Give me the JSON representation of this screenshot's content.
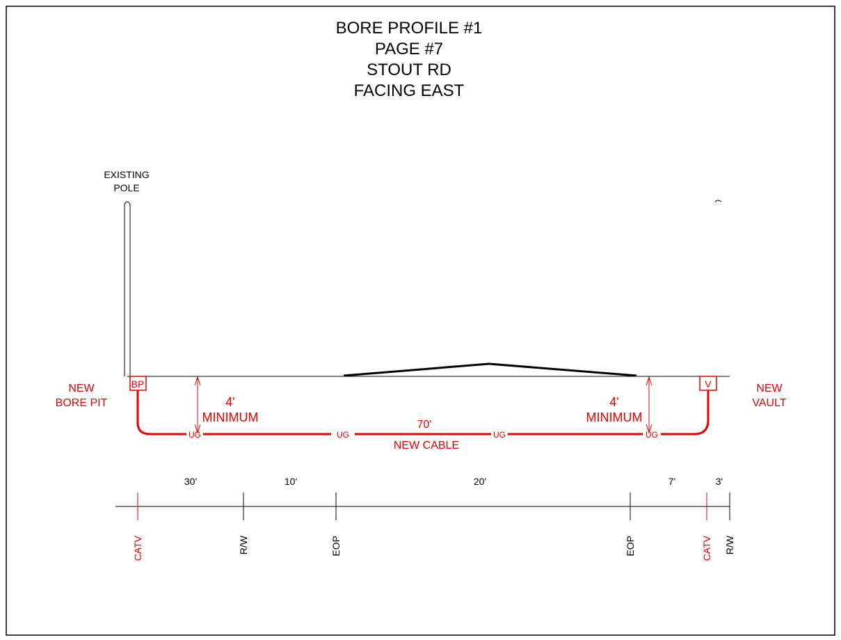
{
  "title": {
    "line1": "BORE PROFILE #1",
    "line2": "PAGE #7",
    "line3": "STOUT RD",
    "line4": "FACING EAST"
  },
  "pole": {
    "label_line1": "EXISTING",
    "label_line2": "POLE"
  },
  "bore_pit": {
    "symbol": "BP",
    "label_line1": "NEW",
    "label_line2": "BORE PIT"
  },
  "vault": {
    "symbol": "V",
    "label_line1": "NEW",
    "label_line2": "VAULT"
  },
  "depth_left": {
    "value": "4'",
    "label": "MINIMUM"
  },
  "depth_right": {
    "value": "4'",
    "label": "MINIMUM"
  },
  "cable": {
    "length": "70'",
    "label": "NEW CABLE",
    "markers": [
      "UG",
      "UG",
      "UG",
      "UG"
    ]
  },
  "dimensions": [
    "30'",
    "10'",
    "20'",
    "7'",
    "3'"
  ],
  "stations": [
    "CATV",
    "R/W",
    "EOP",
    "EOP",
    "CATV",
    "R/W"
  ],
  "colors": {
    "proposed": "#e60000",
    "existing": "#000000"
  }
}
